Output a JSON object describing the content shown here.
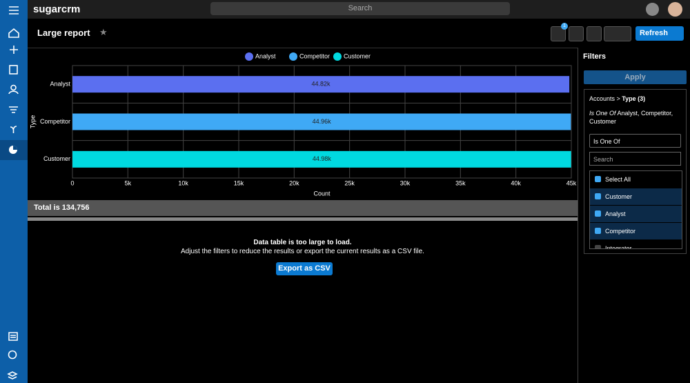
{
  "nav": {
    "brand": "sugarcrm",
    "search_placeholder": "Search"
  },
  "header": {
    "title": "Large report",
    "filter_badge": "1",
    "refresh": "Refresh"
  },
  "chart_data": {
    "type": "bar",
    "orientation": "horizontal",
    "categories": [
      "Analyst",
      "Competitor",
      "Customer"
    ],
    "values": [
      44820,
      44960,
      44980
    ],
    "value_labels": [
      "44.82k",
      "44.96k",
      "44.98k"
    ],
    "colors": [
      "#5b6ff0",
      "#3fa9f5",
      "#00d9e0"
    ],
    "legend": [
      "Analyst",
      "Competitor",
      "Customer"
    ],
    "legend_position": "top",
    "y_label": "Type",
    "x_label": "Count",
    "xlim": [
      0,
      45000
    ],
    "xticks": [
      0,
      {
        "value": 5000,
        "label": "5k"
      },
      {
        "value": 10000,
        "label": "10k"
      },
      {
        "value": 15000,
        "label": "15k"
      },
      {
        "value": 20000,
        "label": "20k"
      },
      {
        "value": 25000,
        "label": "25k"
      },
      {
        "value": 30000,
        "label": "30k"
      },
      {
        "value": 35000,
        "label": "35k"
      },
      {
        "value": 40000,
        "label": "40k"
      },
      {
        "value": 45000,
        "label": "45k"
      }
    ],
    "grid": true
  },
  "total": "Total is 134,756",
  "message": {
    "title": "Data table is too large to load.",
    "body": "Adjust the filters to reduce the results or export the current results as a CSV file.",
    "button": "Export as CSV"
  },
  "filters": {
    "title": "Filters",
    "apply": "Apply",
    "module": "Accounts >",
    "field": "Type (3)",
    "operator": "Is One Of",
    "selection": "Analyst, Competitor, Customer",
    "select_value": "Is One Of",
    "search_placeholder": "Search",
    "select_all": "Select All",
    "options": [
      {
        "label": "Customer",
        "checked": true
      },
      {
        "label": "Analyst",
        "checked": true
      },
      {
        "label": "Competitor",
        "checked": true
      },
      {
        "label": "Integrator",
        "checked": false
      }
    ]
  }
}
